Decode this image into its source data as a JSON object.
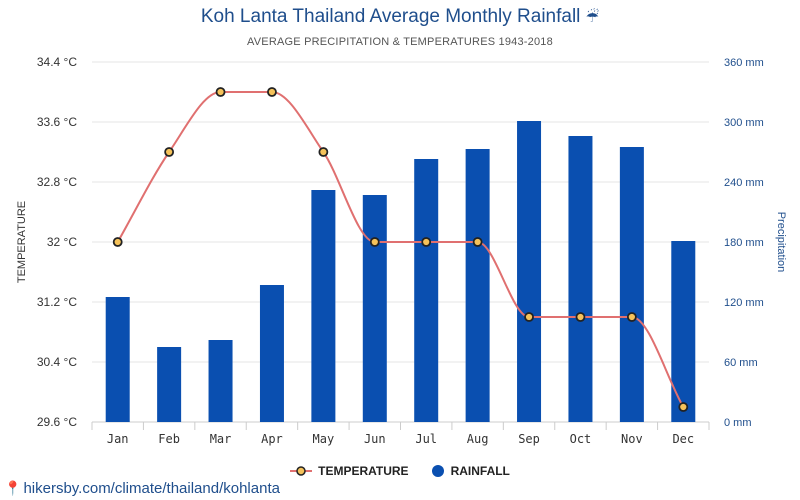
{
  "title_text": "Koh Lanta Thailand Average Monthly Rainfall",
  "title_icon": "umbrella-rain-icon",
  "title_icon_char": "☔",
  "subtitle": "AVERAGE PRECIPITATION & TEMPERATURES 1943-2018",
  "source": "hikersby.com/climate/thailand/kohlanta",
  "colors": {
    "bar": "#0a4fb0",
    "line": "#e07070",
    "marker_fill": "#f5c25a",
    "marker_stroke": "#222222",
    "axis_text_right": "#1f4e8c",
    "title": "#1f4e8c"
  },
  "chart_data": {
    "type": "bar+line",
    "categories": [
      "Jan",
      "Feb",
      "Mar",
      "Apr",
      "May",
      "Jun",
      "Jul",
      "Aug",
      "Sep",
      "Oct",
      "Nov",
      "Dec"
    ],
    "series": [
      {
        "name": "TEMPERATURE",
        "type": "line",
        "axis": "left",
        "unit": "°C",
        "values": [
          32.0,
          33.2,
          34.0,
          34.0,
          33.2,
          32.0,
          32.0,
          32.0,
          31.0,
          31.0,
          31.0,
          29.8
        ]
      },
      {
        "name": "RAINFALL",
        "type": "bar",
        "axis": "right",
        "unit": "mm",
        "values": [
          125,
          75,
          82,
          137,
          232,
          227,
          263,
          273,
          301,
          286,
          275,
          181
        ]
      }
    ],
    "y_left": {
      "label": "TEMPERATURE",
      "range": [
        29.6,
        34.4
      ],
      "ticks": [
        "29.6 °C",
        "30.4 °C",
        "31.2 °C",
        "32 °C",
        "32.8 °C",
        "33.6 °C",
        "34.4 °C"
      ]
    },
    "y_right": {
      "label": "Precipitation",
      "range": [
        0,
        360
      ],
      "ticks": [
        "0 mm",
        "60 mm",
        "120 mm",
        "180 mm",
        "240 mm",
        "300 mm",
        "360 mm"
      ]
    },
    "legend": {
      "position": "bottom-center",
      "items": [
        "TEMPERATURE",
        "RAINFALL"
      ]
    },
    "grid": true
  }
}
